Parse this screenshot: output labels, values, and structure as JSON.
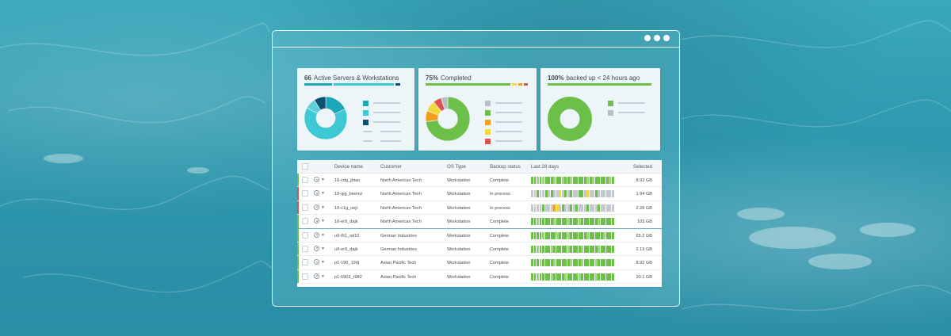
{
  "colors": {
    "teal": "#3ec8d4",
    "teal_mid": "#1ba8b8",
    "navy": "#0d4f72",
    "green": "#6cc04a",
    "light_green": "#9ed67f",
    "yellow": "#f2d83b",
    "orange": "#f0a020",
    "red": "#d9534f",
    "grey": "#b7c0c6"
  },
  "cards": [
    {
      "count": "66",
      "label": "Active Servers & Workstations",
      "bar_segments": [
        {
          "color": "#1ba8b8",
          "fraction": 0.28
        },
        {
          "color": "#3ec8d4",
          "fraction": 0.59
        },
        {
          "color": "#0d4f72",
          "fraction": 0.06
        }
      ],
      "donut": [
        {
          "color": "#1ba8b8",
          "value": 18
        },
        {
          "color": "#3ec8d4",
          "value": 65
        },
        {
          "color": "#5cd0da",
          "value": 8
        },
        {
          "color": "#0d4f72",
          "value": 9
        }
      ],
      "legend": [
        {
          "color": "#1ba8b8"
        },
        {
          "color": "#3ec8d4"
        },
        {
          "color": "#0d4f72"
        },
        {
          "color": "none"
        },
        {
          "color": "none"
        }
      ]
    },
    {
      "count": "75%",
      "label": "Completed",
      "bar_segments": [
        {
          "color": "#6cc04a",
          "fraction": 0.82
        },
        {
          "color": "#f2d83b",
          "fraction": 0.06
        },
        {
          "color": "#f0a020",
          "fraction": 0.05
        },
        {
          "color": "#d9534f",
          "fraction": 0.05
        }
      ],
      "donut": [
        {
          "color": "#6cc04a",
          "value": 73
        },
        {
          "color": "#f0a020",
          "value": 8
        },
        {
          "color": "#f2d83b",
          "value": 8
        },
        {
          "color": "#d9534f",
          "value": 6
        },
        {
          "color": "#b7c0c6",
          "value": 5
        }
      ],
      "legend": [
        {
          "color": "#b7c0c6"
        },
        {
          "color": "#6cc04a"
        },
        {
          "color": "#f0a020"
        },
        {
          "color": "#f2d83b"
        },
        {
          "color": "#d9534f"
        }
      ]
    },
    {
      "count": "100%",
      "label": "backed up < 24 hours ago",
      "bar_segments": [
        {
          "color": "#6cc04a",
          "fraction": 1.0
        }
      ],
      "donut": [
        {
          "color": "#6cc04a",
          "value": 100
        }
      ],
      "legend": [
        {
          "color": "#6cc04a"
        },
        {
          "color": "#b7c0c6"
        }
      ]
    }
  ],
  "table": {
    "headers": [
      "Device name",
      "Customer",
      "OS Type",
      "Backup status",
      "Last 28 days",
      "Selected"
    ],
    "rows": [
      {
        "device": "10-cdg_jbtan",
        "customer": "North American Tech",
        "os": "Workstation",
        "status": "Complete",
        "selected": "8.93 GB",
        "flag": "#6cc04a",
        "history": "gglglggglgglgglggggglglggggglg"
      },
      {
        "device": "10-qig_beemz",
        "customer": "North American Tech",
        "os": "Workstation",
        "status": "In process",
        "selected": "1.94 GB",
        "flag": "#d9534f",
        "history": "xxgxxgxgxxyxgxgxxggxyxxgxxxxxx"
      },
      {
        "device": "10-c1g_oeji",
        "customer": "North American Tech",
        "os": "Workstation",
        "status": "In process",
        "selected": "2.28 GB",
        "flag": "#d9534f",
        "history": "xxxxgxxxoyxgxxgxgxxxgxxxgxxxxx"
      },
      {
        "device": "10-er9_dajk",
        "customer": "North American Tech",
        "os": "Workstation",
        "status": "Complete",
        "selected": "103 GB",
        "flag": "#6cc04a",
        "history": "gglggggglgggglggglgggggglggggg"
      },
      {
        "device": "u9-0t1_od10",
        "customer": "German Industries",
        "os": "Workstation",
        "status": "Complete",
        "selected": "65.2 GB",
        "flag": "#6cc04a",
        "history": "gggglgggglggglgggggglggggglggg"
      },
      {
        "device": "u9-er9_dajk",
        "customer": "German Industries",
        "os": "Workstation",
        "status": "Complete",
        "selected": "2.19 GB",
        "flag": "#6cc04a",
        "history": "gglgggglggggglgggglggggglggggg"
      },
      {
        "device": "p1-190_19dj",
        "customer": "Asian Pacific Tech",
        "os": "Workstation",
        "status": "Complete",
        "selected": "8.92 GB",
        "flag": "#6cc04a",
        "history": "ggglgggglggggglggglgggglgggggg"
      },
      {
        "device": "p1-6903_r982",
        "customer": "Asian Pacific Tech",
        "os": "Workstation",
        "status": "Complete",
        "selected": "20.1 GB",
        "flag": "#6cc04a",
        "history": "gglgggglgggglgggglggggglgggggg"
      }
    ]
  }
}
